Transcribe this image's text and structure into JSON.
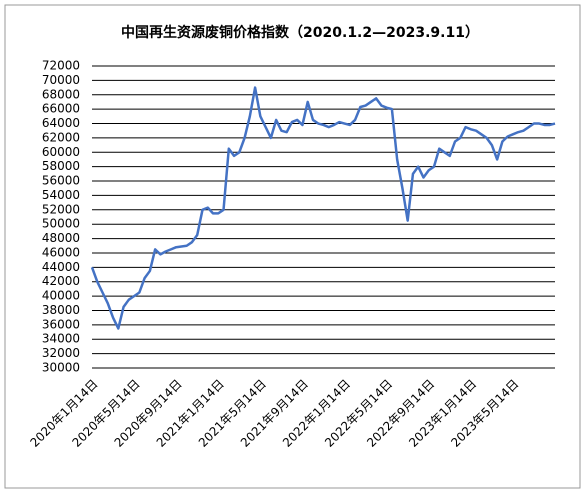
{
  "chart_data": {
    "type": "line",
    "title": "中国再生资源废铜价格指数（2020.1.2—2023.9.11）",
    "categories": [
      "2020年1月14日",
      null,
      null,
      null,
      null,
      null,
      null,
      null,
      "2020年5月14日",
      null,
      null,
      null,
      null,
      null,
      null,
      null,
      "2020年9月14日",
      null,
      null,
      null,
      null,
      null,
      null,
      null,
      "2021年1月14日",
      null,
      null,
      null,
      null,
      null,
      null,
      null,
      "2021年5月14日",
      null,
      null,
      null,
      null,
      null,
      null,
      null,
      "2021年9月14日",
      null,
      null,
      null,
      null,
      null,
      null,
      null,
      "2022年1月14日",
      null,
      null,
      null,
      null,
      null,
      null,
      null,
      "2022年5月14日",
      null,
      null,
      null,
      null,
      null,
      null,
      null,
      "2022年9月14日",
      null,
      null,
      null,
      null,
      null,
      null,
      null,
      "2023年1月14日",
      null,
      null,
      null,
      null,
      null,
      null,
      null,
      "2023年5月14日",
      null,
      null,
      null,
      null,
      null,
      null,
      null,
      null
    ],
    "series": [
      {
        "color": "#4472c4",
        "values": [
          44000,
          42000,
          40500,
          39000,
          37000,
          35500,
          38500,
          39500,
          40000,
          40500,
          42500,
          43500,
          46500,
          45800,
          46200,
          46500,
          46800,
          46900,
          47000,
          47500,
          48500,
          52000,
          52300,
          51500,
          51500,
          52000,
          60500,
          59500,
          60000,
          62000,
          65000,
          69000,
          65000,
          63500,
          62000,
          64500,
          63000,
          62800,
          64200,
          64500,
          63800,
          67000,
          64500,
          64000,
          63800,
          63500,
          63800,
          64200,
          64000,
          63800,
          64500,
          66300,
          66500,
          67000,
          67500,
          66500,
          66200,
          66000,
          59000,
          55000,
          50500,
          57000,
          58000,
          56500,
          57500,
          58000,
          60500,
          60000,
          59500,
          61500,
          62000,
          63500,
          63200,
          63000,
          62500,
          62000,
          61000,
          59000,
          61500,
          62200,
          62500,
          62800,
          63000,
          63500,
          64000,
          64000,
          63800,
          63800,
          64000
        ]
      }
    ],
    "ylim": [
      30000,
      72000
    ],
    "yticks": [
      30000,
      32000,
      34000,
      36000,
      38000,
      40000,
      42000,
      44000,
      46000,
      48000,
      50000,
      52000,
      54000,
      56000,
      58000,
      60000,
      62000,
      64000,
      66000,
      68000,
      70000,
      72000
    ],
    "grid": true
  }
}
